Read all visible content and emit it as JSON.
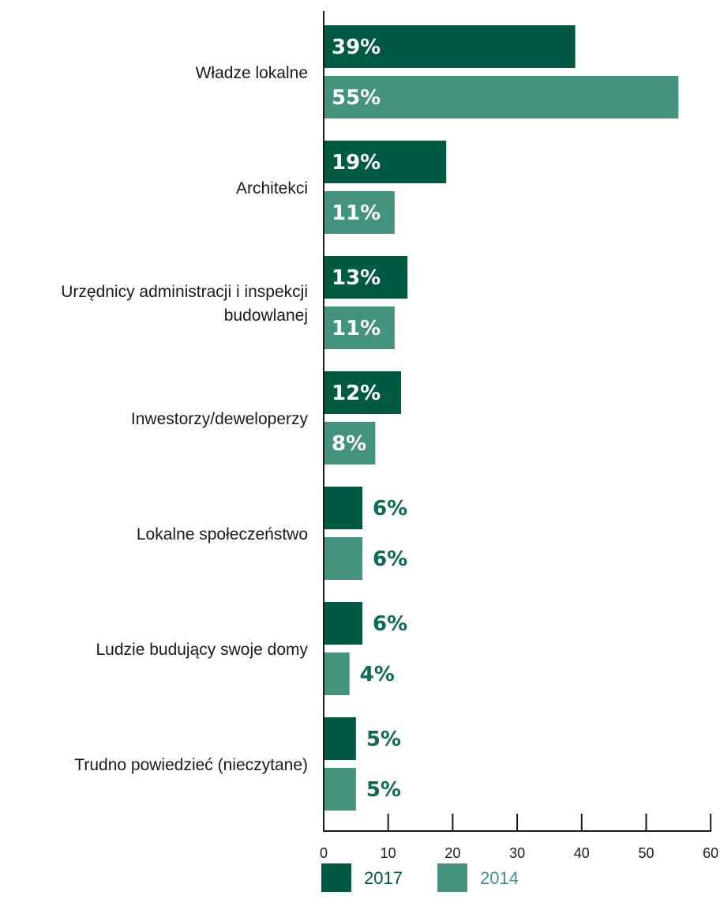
{
  "chart_data": {
    "type": "bar",
    "orientation": "horizontal",
    "categories": [
      [
        "Władze lokalne"
      ],
      [
        "Architekci"
      ],
      [
        "Urzędnicy administracji i inspekcji",
        "budowlanej"
      ],
      [
        "Inwestorzy/deweloperzy"
      ],
      [
        "Lokalne społeczeństwo"
      ],
      [
        "Ludzie budujący swoje domy"
      ],
      [
        "Trudno powiedzieć (nieczytane)"
      ]
    ],
    "series": [
      {
        "name": "2017",
        "color": "#005a43",
        "values": [
          39,
          19,
          13,
          12,
          6,
          6,
          5
        ],
        "labels": [
          "39%",
          "19%",
          "13%",
          "12%",
          "6%",
          "6%",
          "5%"
        ]
      },
      {
        "name": "2014",
        "color": "#43937f",
        "values": [
          55,
          11,
          11,
          8,
          6,
          4,
          5
        ],
        "labels": [
          "55%",
          "11%",
          "11%",
          "8%",
          "6%",
          "4%",
          "5%"
        ]
      }
    ],
    "xlim": [
      0,
      60
    ],
    "xticks": [
      0,
      10,
      20,
      30,
      40,
      50,
      60
    ],
    "xtick_labels": [
      "0",
      "10",
      "20",
      "30",
      "40",
      "50",
      "60"
    ],
    "grid": false,
    "legend_position": "bottom",
    "inside_label_color": "#ffffff",
    "outside_label_color": "#0c6b54"
  }
}
